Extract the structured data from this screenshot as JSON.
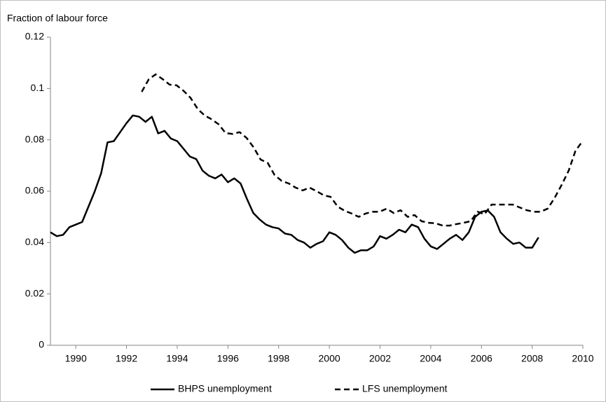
{
  "chart_data": {
    "type": "line",
    "ylabel": "Fraction of labour force",
    "xlim": [
      1989,
      2010
    ],
    "xticks": [
      1990,
      1992,
      1994,
      1996,
      1998,
      2000,
      2002,
      2004,
      2006,
      2008,
      2010
    ],
    "ylim": [
      0,
      0.12
    ],
    "yticks": [
      0,
      0.02,
      0.04,
      0.06,
      0.08,
      0.1,
      0.12
    ],
    "grid": false,
    "legend": "bottom",
    "series": [
      {
        "name": "BHPS unemployment",
        "color": "#000000",
        "dash": "solid",
        "x": [
          1989,
          1989.25,
          1989.5,
          1989.75,
          1990,
          1990.25,
          1990.5,
          1990.75,
          1991,
          1991.25,
          1991.5,
          1991.75,
          1992,
          1992.25,
          1992.5,
          1992.75,
          1993,
          1993.25,
          1993.5,
          1993.75,
          1994,
          1994.25,
          1994.5,
          1994.75,
          1995,
          1995.25,
          1995.5,
          1995.75,
          1996,
          1996.25,
          1996.5,
          1996.75,
          1997,
          1997.25,
          1997.5,
          1997.75,
          1998,
          1998.25,
          1998.5,
          1998.75,
          1999,
          1999.25,
          1999.5,
          1999.75,
          2000,
          2000.25,
          2000.5,
          2000.75,
          2001,
          2001.25,
          2001.5,
          2001.75,
          2002,
          2002.25,
          2002.5,
          2002.75,
          2003,
          2003.25,
          2003.5,
          2003.75,
          2004,
          2004.25,
          2004.5,
          2004.75,
          2005,
          2005.25,
          2005.5,
          2005.75,
          2006,
          2006.25,
          2006.5,
          2006.75,
          2007,
          2007.25,
          2007.5,
          2007.75,
          2008,
          2008.25
        ],
        "values": [
          0.044,
          0.0425,
          0.043,
          0.046,
          0.047,
          0.048,
          0.054,
          0.06,
          0.067,
          0.079,
          0.0795,
          0.083,
          0.0865,
          0.0895,
          0.089,
          0.087,
          0.089,
          0.0825,
          0.0835,
          0.0805,
          0.0795,
          0.0765,
          0.0735,
          0.0725,
          0.068,
          0.066,
          0.065,
          0.0665,
          0.0635,
          0.065,
          0.063,
          0.057,
          0.0515,
          0.049,
          0.047,
          0.046,
          0.0455,
          0.0435,
          0.043,
          0.041,
          0.04,
          0.038,
          0.0395,
          0.0405,
          0.044,
          0.043,
          0.041,
          0.038,
          0.036,
          0.037,
          0.037,
          0.0385,
          0.0425,
          0.0415,
          0.043,
          0.045,
          0.044,
          0.047,
          0.046,
          0.0415,
          0.0385,
          0.0375,
          0.0395,
          0.0415,
          0.043,
          0.041,
          0.044,
          0.05,
          0.052,
          0.0525,
          0.05,
          0.044,
          0.0415,
          0.0395,
          0.04,
          0.038,
          0.038,
          0.042
        ]
      },
      {
        "name": "LFS unemployment",
        "color": "#000000",
        "dash": "dashed",
        "x": [
          1992.6,
          1992.88,
          1993.15,
          1993.43,
          1993.7,
          1993.98,
          1994.26,
          1994.53,
          1994.81,
          1995.08,
          1995.36,
          1995.64,
          1995.91,
          1996.19,
          1996.46,
          1996.74,
          1997.02,
          1997.29,
          1997.57,
          1997.84,
          1998.12,
          1998.4,
          1998.67,
          1998.95,
          1999.22,
          1999.5,
          1999.78,
          2000.05,
          2000.33,
          2000.6,
          2000.88,
          2001.16,
          2001.43,
          2001.71,
          2001.98,
          2002.26,
          2002.54,
          2002.81,
          2003.09,
          2003.36,
          2003.64,
          2003.92,
          2004.19,
          2004.47,
          2004.74,
          2005.02,
          2005.3,
          2005.57,
          2005.85,
          2006.12,
          2006.4,
          2006.68,
          2006.95,
          2007.23,
          2007.5,
          2007.78,
          2008.06,
          2008.33,
          2008.61,
          2008.88,
          2009.16,
          2009.44,
          2009.71,
          2009.99
        ],
        "values": [
          0.0987,
          0.1036,
          0.1055,
          0.1036,
          0.1015,
          0.1012,
          0.099,
          0.0963,
          0.092,
          0.0895,
          0.088,
          0.086,
          0.0826,
          0.0823,
          0.083,
          0.0807,
          0.077,
          0.0723,
          0.071,
          0.0663,
          0.064,
          0.063,
          0.0614,
          0.0603,
          0.0614,
          0.06,
          0.0584,
          0.0578,
          0.054,
          0.0524,
          0.0513,
          0.05,
          0.0513,
          0.052,
          0.052,
          0.0532,
          0.0515,
          0.0526,
          0.05,
          0.0507,
          0.0483,
          0.0477,
          0.0475,
          0.0466,
          0.0466,
          0.0472,
          0.0477,
          0.0483,
          0.052,
          0.051,
          0.0548,
          0.0548,
          0.0548,
          0.0548,
          0.0537,
          0.0526,
          0.052,
          0.052,
          0.0532,
          0.0573,
          0.0624,
          0.068,
          0.0758,
          0.0795
        ]
      }
    ]
  }
}
